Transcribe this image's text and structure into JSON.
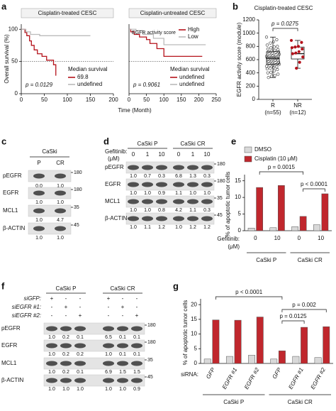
{
  "panel_labels": [
    "a",
    "b",
    "c",
    "d",
    "e",
    "f",
    "g"
  ],
  "chart_data": [
    {
      "type": "km",
      "title": "Cisplatin-treated CESC",
      "y_label": "Overall survival (%)",
      "x_label": "Time (Month)",
      "xlim": [
        0,
        200
      ],
      "xticks": [
        0,
        50,
        100,
        150,
        200
      ],
      "ylim": [
        0,
        108
      ],
      "yticks": [
        0,
        50,
        100
      ],
      "reference_line": 50,
      "legend_title": "Median survival",
      "annotation": "p = 0.0129",
      "series": [
        {
          "name": "69.8",
          "color": "#b5121b",
          "x": [
            0,
            8,
            12,
            18,
            22,
            28,
            35,
            45,
            55,
            70,
            75
          ],
          "values": [
            100,
            95,
            90,
            82,
            75,
            68,
            62,
            58,
            52,
            45,
            28
          ]
        },
        {
          "name": "undefined",
          "color": "#bbbbbb",
          "x": [
            0,
            10,
            20,
            40,
            150
          ],
          "values": [
            100,
            96,
            92,
            90,
            90
          ]
        }
      ]
    },
    {
      "type": "km",
      "title": "Cisplatin-untreated CESC",
      "xlim": [
        0,
        250
      ],
      "xticks": [
        0,
        50,
        100,
        150,
        200,
        250
      ],
      "ylim": [
        0,
        108
      ],
      "reference_line": 50,
      "legend_title": "EGFR activity score",
      "median_title": "Median survival",
      "annotation": "p = 0.9061",
      "series": [
        {
          "name": "High",
          "median": "undefined",
          "color": "#b5121b",
          "x": [
            0,
            5,
            15,
            30,
            50,
            60,
            80,
            100,
            210
          ],
          "values": [
            100,
            96,
            92,
            88,
            84,
            78,
            70,
            58,
            58
          ]
        },
        {
          "name": "Low",
          "median": "undefined",
          "color": "#bbbbbb",
          "x": [
            0,
            20,
            40,
            70,
            100,
            220
          ],
          "values": [
            100,
            98,
            92,
            86,
            76,
            76
          ]
        }
      ]
    },
    {
      "type": "box",
      "title": "Cisplatin-treated CESC",
      "y_label": "EGFR activity score (module)",
      "ylim": [
        0,
        1200
      ],
      "yticks": [
        0,
        200,
        400,
        600,
        800,
        1000,
        1200
      ],
      "categories": [
        "R",
        "NR"
      ],
      "category_notes": [
        "(n=55)",
        "(n=12)"
      ],
      "annotation": "p = 0.0275",
      "boxes": [
        {
          "min": 330,
          "q1": 530,
          "median": 620,
          "q3": 720,
          "max": 940,
          "color": "#333333",
          "points": [
            940,
            900,
            870,
            850,
            820,
            800,
            790,
            780,
            760,
            750,
            740,
            730,
            720,
            715,
            710,
            700,
            690,
            680,
            670,
            660,
            655,
            650,
            640,
            635,
            630,
            625,
            620,
            615,
            610,
            600,
            595,
            590,
            580,
            570,
            560,
            555,
            550,
            540,
            530,
            525,
            520,
            510,
            500,
            490,
            480,
            470,
            460,
            450,
            430,
            410,
            400,
            380,
            360,
            350,
            330
          ]
        },
        {
          "min": 470,
          "q1": 610,
          "median": 690,
          "q3": 790,
          "max": 890,
          "color": "#b5121b",
          "points": [
            890,
            860,
            800,
            790,
            780,
            760,
            720,
            700,
            690,
            640,
            560,
            470
          ]
        }
      ]
    },
    {
      "type": "grouped_bar",
      "y_label": "% of apoptotic tumor cells",
      "ylim": [
        0,
        16
      ],
      "yticks": [
        0,
        5,
        10,
        15
      ],
      "x_label": [
        "Gefitinib:",
        "(μM)"
      ],
      "groups": [
        {
          "name": "CaSki P",
          "categories": [
            "0",
            "10"
          ]
        },
        {
          "name": "CaSki CR",
          "categories": [
            "0",
            "10"
          ]
        }
      ],
      "series": [
        {
          "name": "DMSO",
          "color": "#d9d9d9",
          "values": [
            0.8,
            0.9,
            1.2,
            1.8
          ]
        },
        {
          "name": "Cisplatin (10 μM)",
          "color": "#c0272d",
          "values": [
            13,
            13.6,
            4.3,
            11.1
          ]
        }
      ],
      "annotations": [
        "p = 0.0015",
        "p < 0.0001"
      ]
    },
    {
      "type": "grouped_bar",
      "y_label": "% of apoptotic tumor cells",
      "ylim": [
        0,
        21
      ],
      "yticks": [
        0,
        5,
        10,
        15,
        20
      ],
      "x_label": [
        "siRNA:"
      ],
      "groups": [
        {
          "name": "CaSki P",
          "categories": [
            "GFP",
            "EGFR #1",
            "EGFR #2"
          ]
        },
        {
          "name": "CaSki CR",
          "categories": [
            "GFP",
            "EGFR #1",
            "EGFR #2"
          ]
        }
      ],
      "series": [
        {
          "color": "#d9d9d9",
          "values": [
            1.5,
            2.4,
            2.8,
            1.5,
            2.4,
            2.0
          ]
        },
        {
          "color": "#c0272d",
          "values": [
            14.8,
            14.7,
            15.8,
            4.3,
            12.3,
            12.5
          ]
        }
      ],
      "annotations": [
        "p < 0.0001",
        "p = 0.002",
        "p = 0.0125"
      ]
    }
  ],
  "blots": [
    {
      "title": "CaSki",
      "lanes": [
        "P",
        "CR"
      ],
      "rows": [
        {
          "name": "pEGFR",
          "mw": 180,
          "quant": [
            "0.0",
            "1.0"
          ]
        },
        {
          "name": "EGFR",
          "mw": 180,
          "quant": [
            "1.0",
            "1.0"
          ]
        },
        {
          "name": "MCL1",
          "mw": 35,
          "quant": [
            "1.0",
            "4.7"
          ]
        },
        {
          "name": "β-ACTIN",
          "mw": 45,
          "quant": [
            "1.0",
            "1.0"
          ]
        }
      ]
    },
    {
      "groups": [
        {
          "name": "CaSki P"
        },
        {
          "name": "CaSki CR"
        }
      ],
      "treatment_label": "Gefitinib:",
      "treatment_unit": "(μM)",
      "lanes": [
        "0",
        "1",
        "10",
        "0",
        "1",
        "10"
      ],
      "rows": [
        {
          "name": "pEGFR",
          "mw": 180,
          "quant": [
            "1.0",
            "0.7",
            "0.3",
            "6.8",
            "1.3",
            "0.3"
          ]
        },
        {
          "name": "EGFR",
          "mw": 180,
          "quant": [
            "1.0",
            "1.0",
            "0.9",
            "1.1",
            "1.0",
            "1.0"
          ]
        },
        {
          "name": "MCL1",
          "mw": 35,
          "quant": [
            "1.0",
            "1.0",
            "0.8",
            "4.2",
            "1.1",
            "0.3"
          ]
        },
        {
          "name": "β-ACTIN",
          "mw": 45,
          "quant": [
            "1.0",
            "1.1",
            "1.2",
            "1.0",
            "1.2",
            "1.2"
          ]
        }
      ]
    },
    {
      "groups": [
        {
          "name": "CaSki P"
        },
        {
          "name": "CaSki CR"
        }
      ],
      "conditions": [
        {
          "name": "siGFP:",
          "lanes": [
            "+",
            "-",
            "-",
            "+",
            "-",
            "-"
          ]
        },
        {
          "name": "siEGFR #1:",
          "lanes": [
            "-",
            "+",
            "-",
            "-",
            "+",
            "-"
          ]
        },
        {
          "name": "siEGFR #2:",
          "lanes": [
            "-",
            "-",
            "+",
            "-",
            "-",
            "+"
          ]
        }
      ],
      "rows": [
        {
          "name": "pEGFR",
          "mw": 180,
          "quant": [
            "1.0",
            "0.2",
            "0.1",
            "6.5",
            "0.1",
            "0.1"
          ]
        },
        {
          "name": "EGFR",
          "mw": 180,
          "quant": [
            "1.0",
            "0.2",
            "0.2",
            "1.0",
            "0.1",
            "0.1"
          ]
        },
        {
          "name": "MCL1",
          "mw": 35,
          "quant": [
            "1.0",
            "0.2",
            "0.1",
            "6.9",
            "1.5",
            "1.5"
          ]
        },
        {
          "name": "β-ACTIN",
          "mw": 45,
          "quant": [
            "1.0",
            "1.0",
            "1.0",
            "1.0",
            "1.0",
            "0.9"
          ]
        }
      ]
    }
  ]
}
